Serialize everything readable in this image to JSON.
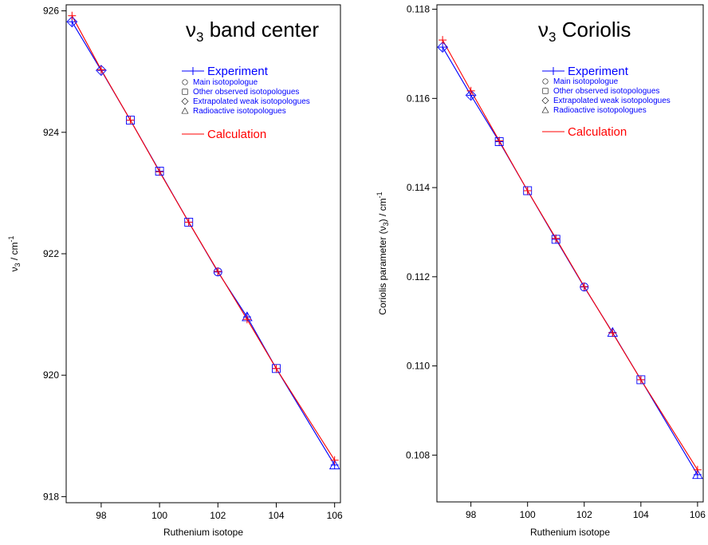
{
  "chart_data": [
    {
      "type": "line",
      "title": "ν3 band center",
      "title_main": "ν",
      "title_sub": "3",
      "title_rest": " band center",
      "xlabel": "Ruthenium isotope",
      "ylabel": "ν3 / cm-1",
      "ylabel_main": "ν",
      "ylabel_sub": "3",
      "ylabel_rest": " / cm",
      "ylabel_sup": "-1",
      "xlim": [
        96.8,
        106.2
      ],
      "ylim": [
        917.9,
        926.1
      ],
      "xticks": [
        98,
        100,
        102,
        104,
        106
      ],
      "yticks": [
        918,
        920,
        922,
        924,
        926
      ],
      "ytick_decimals": 0,
      "grid": false,
      "legend_position": "top-right",
      "series": [
        {
          "name": "Experiment",
          "color": "#0000ff",
          "marker": "plus",
          "x": [
            97,
            98,
            99,
            100,
            101,
            102,
            103,
            104,
            106
          ],
          "y": [
            925.82,
            925.02,
            924.2,
            923.36,
            922.52,
            921.7,
            920.96,
            920.11,
            918.52
          ]
        },
        {
          "name": "Calculation",
          "color": "#ff0000",
          "marker": "plus",
          "x": [
            97,
            98,
            99,
            100,
            101,
            102,
            103,
            104,
            106
          ],
          "y": [
            925.92,
            925.03,
            924.2,
            923.35,
            922.52,
            921.71,
            920.92,
            920.11,
            918.6
          ]
        }
      ],
      "isotopologue_markers": [
        "diamond",
        "diamond",
        "square",
        "square",
        "square",
        "circle",
        "triangle",
        "square",
        "triangle"
      ],
      "legend": {
        "experiment": "Experiment",
        "calculation": "Calculation",
        "items": [
          {
            "symbol": "circle",
            "label": "Main isotopologue"
          },
          {
            "symbol": "square",
            "label": "Other observed isotopologues"
          },
          {
            "symbol": "diamond",
            "label": "Extrapolated weak isotopologues"
          },
          {
            "symbol": "triangle",
            "label": "Radioactive isotopologues"
          }
        ]
      }
    },
    {
      "type": "line",
      "title": "ν3 Coriolis",
      "title_main": "ν",
      "title_sub": "3",
      "title_rest": " Coriolis",
      "xlabel": "Ruthenium isotope",
      "ylabel": "Coriolis parameter (ν3) / cm-1",
      "ylabel_main": "Coriolis parameter (ν",
      "ylabel_sub": "3",
      "ylabel_rest": ") / cm",
      "ylabel_sup": "-1",
      "xlim": [
        96.8,
        106.2
      ],
      "ylim": [
        0.10695,
        0.1181
      ],
      "xticks": [
        98,
        100,
        102,
        104,
        106
      ],
      "yticks": [
        0.108,
        0.11,
        0.112,
        0.114,
        0.116,
        0.118
      ],
      "ytick_decimals": 3,
      "grid": false,
      "legend_position": "top-right",
      "series": [
        {
          "name": "Experiment",
          "color": "#0000ff",
          "marker": "plus",
          "x": [
            97,
            98,
            99,
            100,
            101,
            102,
            103,
            104,
            106
          ],
          "y": [
            0.11715,
            0.11607,
            0.11503,
            0.11393,
            0.11284,
            0.11177,
            0.11075,
            0.10969,
            0.10756
          ]
        },
        {
          "name": "Calculation",
          "color": "#ff0000",
          "marker": "plus",
          "x": [
            97,
            98,
            99,
            100,
            101,
            102,
            103,
            104,
            106
          ],
          "y": [
            0.11731,
            0.11617,
            0.11505,
            0.11393,
            0.11286,
            0.11178,
            0.11074,
            0.10969,
            0.10767
          ]
        }
      ],
      "isotopologue_markers": [
        "diamond",
        "diamond",
        "square",
        "square",
        "square",
        "circle",
        "triangle",
        "square",
        "triangle"
      ],
      "legend": {
        "experiment": "Experiment",
        "calculation": "Calculation",
        "items": [
          {
            "symbol": "circle",
            "label": "Main isotopologue"
          },
          {
            "symbol": "square",
            "label": "Other observed isotopologues"
          },
          {
            "symbol": "diamond",
            "label": "Extrapolated weak isotopologues"
          },
          {
            "symbol": "triangle",
            "label": "Radioactive isotopologues"
          }
        ]
      }
    }
  ]
}
